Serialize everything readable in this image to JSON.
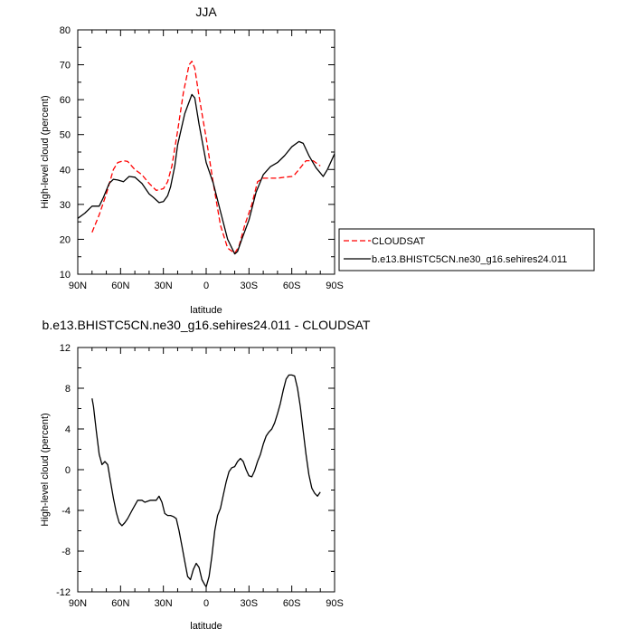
{
  "chart_data": [
    {
      "type": "line",
      "title": "JJA",
      "xlabel": "latitude",
      "ylabel": "High-level cloud (percent)",
      "xlim": [
        90,
        -90
      ],
      "ylim": [
        10,
        80
      ],
      "x_ticks": [
        90,
        60,
        30,
        0,
        -30,
        -60,
        -90
      ],
      "x_tick_labels": [
        "90N",
        "60N",
        "30N",
        "0",
        "30S",
        "60S",
        "90S"
      ],
      "y_ticks": [
        10,
        20,
        30,
        40,
        50,
        60,
        70,
        80
      ],
      "y_tick_labels": [
        "10",
        "20",
        "30",
        "40",
        "50",
        "60",
        "70",
        "80"
      ],
      "grid": false,
      "legend_position": "right",
      "series": [
        {
          "name": "CLOUDSAT",
          "color": "#ff0000",
          "dash": "dashed",
          "x": [
            80,
            75,
            70,
            65,
            62,
            58,
            55,
            50,
            45,
            40,
            35,
            30,
            27,
            24,
            20,
            16,
            12,
            10,
            8,
            5,
            0,
            -5,
            -10,
            -15,
            -20,
            -23,
            -27,
            -32,
            -36,
            -40,
            -45,
            -50,
            -55,
            -60,
            -62,
            -65,
            -70,
            -75,
            -80
          ],
          "y": [
            22,
            27,
            33,
            40,
            42,
            42.5,
            42.3,
            40,
            38.5,
            36,
            34,
            34.5,
            36.5,
            41,
            51,
            62,
            70,
            71,
            69,
            61,
            49,
            36,
            24,
            17.5,
            16,
            18,
            24,
            30,
            36.5,
            37.5,
            37.5,
            37.5,
            37.8,
            38,
            38.5,
            40,
            42.5,
            42.5,
            41
          ]
        },
        {
          "name": "b.e13.BHISTC5CN.ne30_g16.sehires24.011",
          "color": "#000000",
          "dash": "solid",
          "x": [
            90,
            85,
            80,
            75,
            72,
            68,
            65,
            62,
            58,
            54,
            50,
            45,
            40,
            37,
            33,
            30,
            27,
            25,
            22,
            20,
            15,
            10,
            8,
            5,
            0,
            -5,
            -10,
            -15,
            -20,
            -22,
            -25,
            -30,
            -35,
            -40,
            -45,
            -50,
            -55,
            -60,
            -65,
            -68,
            -72,
            -77,
            -80,
            -82,
            -85,
            -90
          ],
          "y": [
            26,
            27.5,
            29.5,
            29.5,
            32,
            36,
            37.2,
            37,
            36.5,
            38,
            37.8,
            36,
            33,
            32,
            30.5,
            30.8,
            32.5,
            35,
            41,
            47,
            56,
            61.5,
            60.5,
            53,
            42,
            36,
            28,
            20,
            15.8,
            16.5,
            20,
            25.5,
            33.5,
            38.5,
            40.8,
            42,
            44,
            46.5,
            48,
            47.5,
            44,
            40.5,
            39,
            38,
            40,
            44.5
          ]
        }
      ]
    },
    {
      "type": "line",
      "title": "b.e13.BHISTC5CN.ne30_g16.sehires24.011 - CLOUDSAT",
      "xlabel": "latitude",
      "ylabel": "High-level cloud (percent)",
      "xlim": [
        90,
        -90
      ],
      "ylim": [
        -12,
        12
      ],
      "x_ticks": [
        90,
        60,
        30,
        0,
        -30,
        -60,
        -90
      ],
      "x_tick_labels": [
        "90N",
        "60N",
        "30N",
        "0",
        "30S",
        "60S",
        "90S"
      ],
      "y_ticks": [
        -12,
        -8,
        -4,
        0,
        4,
        8,
        12
      ],
      "y_tick_labels": [
        "-12",
        "-8",
        "-4",
        "0",
        "4",
        "8",
        "12"
      ],
      "grid": false,
      "series": [
        {
          "color": "#000000",
          "dash": "solid",
          "x": [
            80,
            79,
            77,
            75,
            73,
            71,
            69,
            67,
            65,
            63,
            61,
            59,
            57,
            55,
            52,
            50,
            48,
            45,
            43,
            41,
            39,
            37,
            35,
            33,
            31,
            29,
            27,
            25,
            23,
            21,
            19,
            17,
            15,
            13,
            11,
            9,
            7,
            5,
            3,
            1,
            0,
            -2,
            -4,
            -6,
            -8,
            -10,
            -12,
            -14,
            -16,
            -18,
            -20,
            -22,
            -24,
            -26,
            -28,
            -30,
            -32,
            -34,
            -36,
            -38,
            -40,
            -42,
            -44,
            -46,
            -48,
            -50,
            -52,
            -54,
            -56,
            -58,
            -60,
            -62,
            -64,
            -66,
            -68,
            -70,
            -72,
            -74,
            -76,
            -78,
            -80
          ],
          "y": [
            7,
            6.2,
            3.8,
            1.5,
            0.5,
            0.8,
            0.5,
            -1.2,
            -2.8,
            -4.2,
            -5.2,
            -5.5,
            -5.2,
            -4.8,
            -4,
            -3.5,
            -3,
            -3,
            -3.2,
            -3.1,
            -3,
            -3,
            -3,
            -2.6,
            -3.2,
            -4.3,
            -4.5,
            -4.5,
            -4.6,
            -4.8,
            -6,
            -7.5,
            -9,
            -10.5,
            -10.8,
            -9.8,
            -9.2,
            -9.6,
            -10.8,
            -11.3,
            -11.5,
            -10.5,
            -8.5,
            -6,
            -4.5,
            -3.8,
            -2.5,
            -1.2,
            -0.2,
            0.2,
            0.3,
            0.8,
            1.1,
            0.8,
            0,
            -0.6,
            -0.7,
            -0.1,
            0.8,
            1.5,
            2.5,
            3.3,
            3.7,
            4,
            4.6,
            5.5,
            6.5,
            7.8,
            8.9,
            9.3,
            9.3,
            9.2,
            8,
            6.2,
            3.8,
            1.5,
            -0.5,
            -1.8,
            -2.3,
            -2.6,
            -2.2
          ]
        }
      ]
    }
  ]
}
